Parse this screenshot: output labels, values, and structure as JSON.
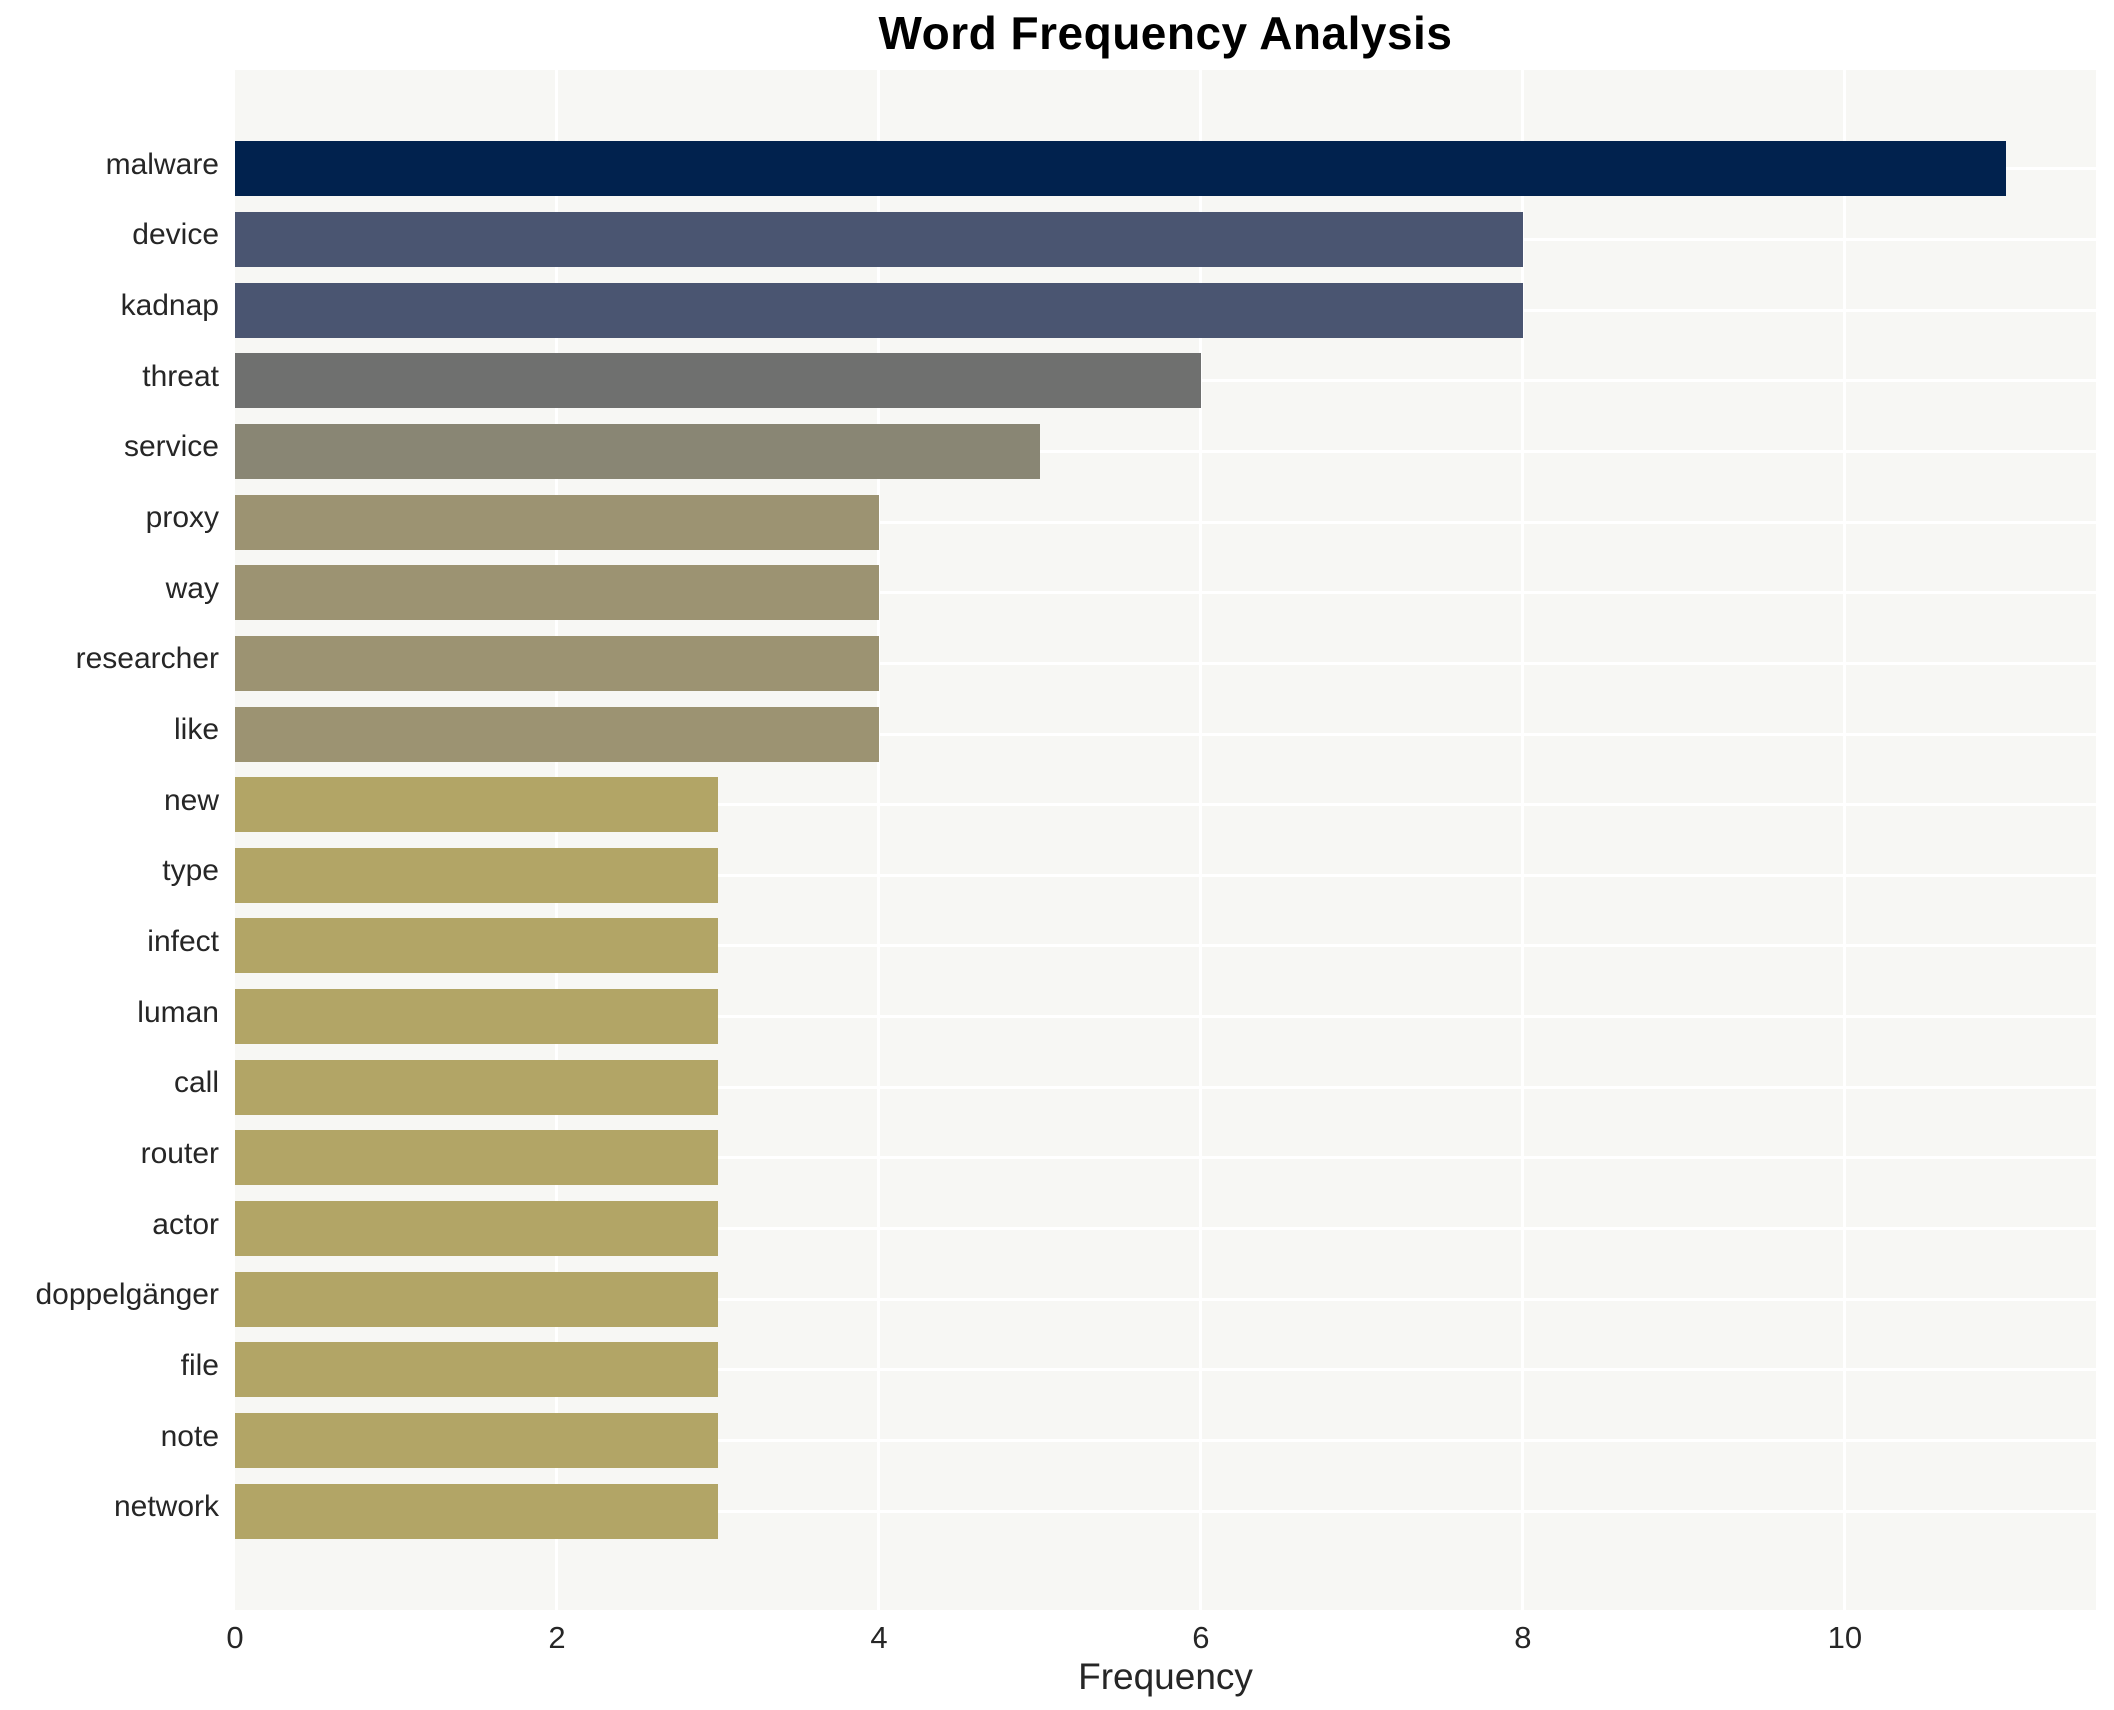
{
  "chart_data": {
    "type": "bar",
    "orientation": "horizontal",
    "title": "Word Frequency Analysis",
    "xlabel": "Frequency",
    "ylabel": "",
    "categories": [
      "malware",
      "device",
      "kadnap",
      "threat",
      "service",
      "proxy",
      "way",
      "researcher",
      "like",
      "new",
      "type",
      "infect",
      "luman",
      "call",
      "router",
      "actor",
      "doppelgänger",
      "file",
      "note",
      "network"
    ],
    "values": [
      11,
      8,
      8,
      6,
      5,
      4,
      4,
      4,
      4,
      3,
      3,
      3,
      3,
      3,
      3,
      3,
      3,
      3,
      3,
      3
    ],
    "bar_colors": [
      "#01224e",
      "#4a5571",
      "#4a5571",
      "#6f706f",
      "#898674",
      "#9c9372",
      "#9c9372",
      "#9c9372",
      "#9c9372",
      "#b2a566",
      "#b2a566",
      "#b2a566",
      "#b2a566",
      "#b2a566",
      "#b2a566",
      "#b2a566",
      "#b2a566",
      "#b2a566",
      "#b2a566",
      "#b2a566"
    ],
    "xticks": [
      0,
      2,
      4,
      6,
      8,
      10
    ],
    "xlim": [
      0,
      11.56
    ],
    "grid": true,
    "grid_color": "#ffffff",
    "plot_background": "#f7f7f4",
    "figure_background": "#ffffff",
    "legend": false
  }
}
